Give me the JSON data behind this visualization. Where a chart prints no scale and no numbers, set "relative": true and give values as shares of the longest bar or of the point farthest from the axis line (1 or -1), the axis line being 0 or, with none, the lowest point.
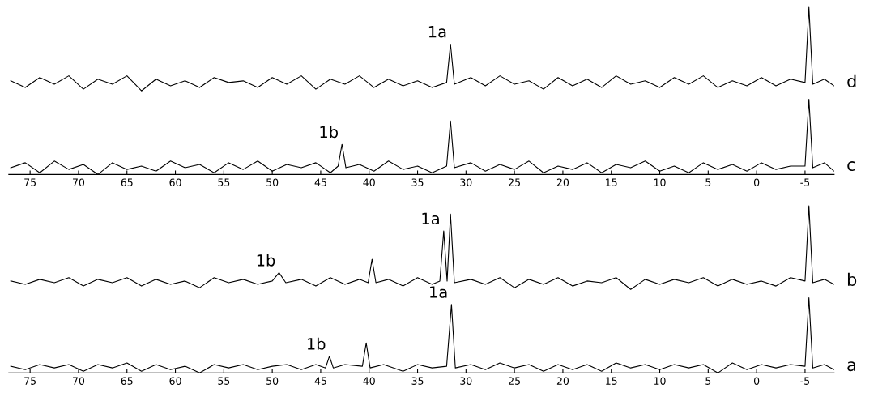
{
  "chart_data": [
    {
      "type": "line",
      "relative": true,
      "xlim": [
        77.2,
        -8.0
      ],
      "xticks": [
        75,
        70,
        65,
        60,
        55,
        50,
        45,
        40,
        35,
        30,
        25,
        20,
        15,
        10,
        5,
        0,
        -5
      ],
      "tick_labels": "x",
      "grid": false,
      "legend": false,
      "marker": "none",
      "line_style": "solid",
      "annotations": [
        {
          "text": "1a",
          "x": 31.6,
          "y": 0.78
        },
        {
          "text": "1b",
          "x": 42.8,
          "y": 0.18
        }
      ],
      "series": [
        {
          "name": "d",
          "color": "#000000",
          "x": [
            77,
            75.5,
            74,
            72.5,
            71,
            69.5,
            68,
            66.5,
            65,
            63.5,
            62,
            60.5,
            59,
            57.5,
            56,
            54.5,
            53,
            51.5,
            50,
            48.5,
            47,
            45.5,
            44,
            42.5,
            41,
            39.5,
            38,
            36.5,
            35,
            33.5,
            32,
            31.6,
            31.2,
            29.5,
            28,
            26.5,
            25,
            23.5,
            22,
            20.5,
            19,
            17.5,
            16,
            14.5,
            13,
            11.5,
            10,
            8.5,
            7,
            5.5,
            4,
            2.5,
            1,
            -0.5,
            -2,
            -3.5,
            -5,
            -5.4,
            -5.8,
            -7,
            -8
          ],
          "values": [
            0.56,
            0.52,
            0.58,
            0.54,
            0.59,
            0.51,
            0.57,
            0.54,
            0.59,
            0.5,
            0.57,
            0.53,
            0.56,
            0.52,
            0.58,
            0.55,
            0.56,
            0.52,
            0.58,
            0.54,
            0.59,
            0.51,
            0.57,
            0.54,
            0.59,
            0.52,
            0.57,
            0.53,
            0.56,
            0.52,
            0.55,
            0.78,
            0.54,
            0.58,
            0.53,
            0.59,
            0.54,
            0.56,
            0.51,
            0.58,
            0.53,
            0.57,
            0.52,
            0.59,
            0.54,
            0.56,
            0.52,
            0.58,
            0.54,
            0.59,
            0.52,
            0.56,
            0.53,
            0.58,
            0.53,
            0.57,
            0.55,
            1.0,
            0.54,
            0.57,
            0.53
          ]
        },
        {
          "name": "c",
          "color": "#000000",
          "x": [
            77,
            75.5,
            74,
            72.5,
            71,
            69.5,
            68,
            66.5,
            65,
            63.5,
            62,
            60.5,
            59,
            57.5,
            56,
            54.5,
            53,
            51.5,
            50,
            48.5,
            47,
            45.5,
            44,
            43.2,
            42.8,
            42.4,
            41,
            39.5,
            38,
            36.5,
            35,
            33.5,
            32,
            31.6,
            31.2,
            29.5,
            28,
            26.5,
            25,
            23.5,
            22,
            20.5,
            19,
            17.5,
            16,
            14.5,
            13,
            11.5,
            10,
            8.5,
            7,
            5.5,
            4,
            2.5,
            1,
            -0.5,
            -2,
            -3.5,
            -5,
            -5.4,
            -5.8,
            -7,
            -8
          ],
          "values": [
            0.04,
            0.07,
            0.01,
            0.08,
            0.03,
            0.06,
            0,
            0.07,
            0.03,
            0.05,
            0.02,
            0.08,
            0.04,
            0.06,
            0.01,
            0.07,
            0.03,
            0.08,
            0.02,
            0.06,
            0.04,
            0.07,
            0.01,
            0.05,
            0.18,
            0.04,
            0.06,
            0.02,
            0.08,
            0.03,
            0.05,
            0.01,
            0.05,
            0.32,
            0.04,
            0.07,
            0.02,
            0.06,
            0.03,
            0.08,
            0.01,
            0.05,
            0.03,
            0.07,
            0.01,
            0.06,
            0.04,
            0.08,
            0.02,
            0.05,
            0.01,
            0.07,
            0.03,
            0.06,
            0.02,
            0.07,
            0.03,
            0.05,
            0.05,
            0.45,
            0.04,
            0.07,
            0.02
          ]
        }
      ]
    },
    {
      "type": "line",
      "relative": true,
      "xlim": [
        77.2,
        -8.0
      ],
      "xticks": [
        75,
        70,
        65,
        60,
        55,
        50,
        45,
        40,
        35,
        30,
        25,
        20,
        15,
        10,
        5,
        0,
        -5
      ],
      "tick_labels": "x",
      "grid": false,
      "legend": false,
      "marker": "none",
      "line_style": "solid",
      "annotations": [
        {
          "text": "1b",
          "x": 49.3,
          "y": 0.6
        },
        {
          "text": "1a",
          "x": 32.3,
          "y": 0.85
        },
        {
          "text": "1b",
          "x": 44.1,
          "y": 0.1
        },
        {
          "text": "1a",
          "x": 31.5,
          "y": 0.41
        }
      ],
      "series": [
        {
          "name": "b",
          "color": "#000000",
          "x": [
            77,
            75.5,
            74,
            72.5,
            71,
            69.5,
            68,
            66.5,
            65,
            63.5,
            62,
            60.5,
            59,
            57.5,
            56,
            54.5,
            53,
            51.5,
            50,
            49.3,
            48.6,
            47,
            45.5,
            44,
            42.5,
            41,
            40.1,
            39.7,
            39.3,
            38,
            36.5,
            35,
            33.5,
            32.7,
            32.3,
            31.95,
            31.6,
            31.2,
            29.5,
            28,
            26.5,
            25,
            23.5,
            22,
            20.5,
            19,
            17.5,
            16,
            14.5,
            13,
            11.5,
            10,
            8.5,
            7,
            5.5,
            4,
            2.5,
            1,
            -0.5,
            -2,
            -3.5,
            -5,
            -5.4,
            -5.8,
            -7,
            -8
          ],
          "values": [
            0.55,
            0.53,
            0.56,
            0.54,
            0.57,
            0.52,
            0.56,
            0.54,
            0.57,
            0.52,
            0.56,
            0.53,
            0.55,
            0.51,
            0.57,
            0.54,
            0.56,
            0.53,
            0.55,
            0.6,
            0.54,
            0.56,
            0.52,
            0.57,
            0.53,
            0.56,
            0.54,
            0.68,
            0.54,
            0.56,
            0.52,
            0.57,
            0.53,
            0.55,
            0.85,
            0.55,
            0.95,
            0.54,
            0.56,
            0.53,
            0.57,
            0.51,
            0.56,
            0.53,
            0.57,
            0.52,
            0.55,
            0.54,
            0.57,
            0.5,
            0.56,
            0.53,
            0.56,
            0.54,
            0.57,
            0.52,
            0.56,
            0.53,
            0.55,
            0.52,
            0.57,
            0.55,
            1.0,
            0.54,
            0.56,
            0.53
          ]
        },
        {
          "name": "a",
          "color": "#000000",
          "x": [
            77,
            75.5,
            74,
            72.5,
            71,
            69.5,
            68,
            66.5,
            65,
            63.5,
            62,
            60.5,
            59,
            57.5,
            56,
            54.5,
            53,
            51.5,
            50,
            48.5,
            47,
            45.5,
            44.5,
            44.1,
            43.7,
            42.5,
            40.7,
            40.3,
            39.9,
            38.5,
            36.5,
            35,
            33.5,
            32,
            31.5,
            31.1,
            29.5,
            28,
            26.5,
            25,
            23.5,
            22,
            20.5,
            19,
            17.5,
            16,
            14.5,
            13,
            11.5,
            10,
            8.5,
            7,
            5.5,
            4,
            2.5,
            1,
            -0.5,
            -2,
            -3.5,
            -5,
            -5.4,
            -5.8,
            -7,
            -8
          ],
          "values": [
            0.04,
            0.02,
            0.05,
            0.03,
            0.05,
            0.01,
            0.05,
            0.03,
            0.06,
            0.01,
            0.05,
            0.02,
            0.04,
            0,
            0.05,
            0.03,
            0.05,
            0.02,
            0.04,
            0.05,
            0.02,
            0.05,
            0.03,
            0.1,
            0.03,
            0.05,
            0.04,
            0.18,
            0.03,
            0.05,
            0.01,
            0.05,
            0.03,
            0.04,
            0.41,
            0.03,
            0.05,
            0.02,
            0.06,
            0.03,
            0.05,
            0.01,
            0.05,
            0.02,
            0.05,
            0.01,
            0.06,
            0.03,
            0.05,
            0.02,
            0.05,
            0.03,
            0.05,
            0,
            0.06,
            0.02,
            0.05,
            0.03,
            0.05,
            0.04,
            0.45,
            0.03,
            0.05,
            0.02
          ]
        }
      ]
    }
  ]
}
